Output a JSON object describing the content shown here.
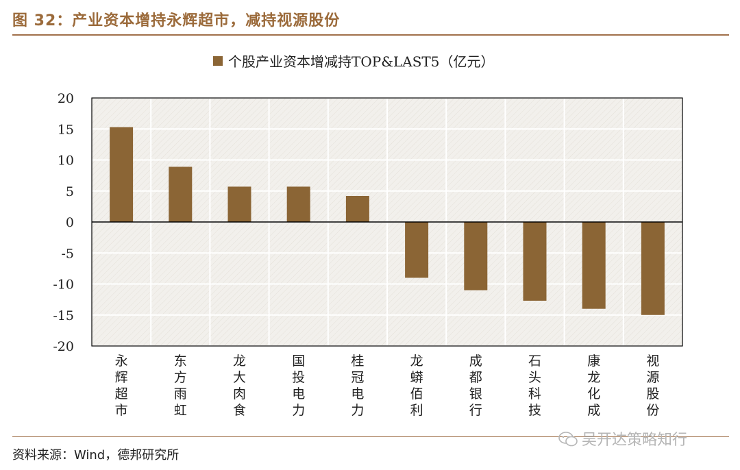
{
  "figure": {
    "title": "图 32：产业资本增持永辉超市，减持视源股份",
    "source": "资料来源：Wind，德邦研究所",
    "watermark": "吴开达策略知行"
  },
  "colors": {
    "bar": "#8b6535",
    "title": "#9b6a3a",
    "rule": "#a0704a",
    "plot_bg": "#f2f0ec",
    "grid": "#ffffff"
  },
  "chart_data": {
    "type": "bar",
    "legend": "个股产业资本增减持TOP&LAST5（亿元）",
    "legend_position": "top-center",
    "categories": [
      "永辉超市",
      "东方雨虹",
      "龙大肉食",
      "国投电力",
      "桂冠电力",
      "龙蟒佰利",
      "成都银行",
      "石头科技",
      "康龙化成",
      "视源股份"
    ],
    "series": [
      {
        "name": "个股产业资本增减持TOP&LAST5（亿元）",
        "values": [
          15.3,
          8.9,
          5.7,
          5.7,
          4.2,
          -9.0,
          -11.0,
          -12.7,
          -14.0,
          -15.0
        ]
      }
    ],
    "ylim": [
      -20,
      20
    ],
    "yticks": [
      "20",
      "15",
      "10",
      "5",
      "0",
      "-5",
      "-10",
      "-15",
      "-20"
    ],
    "grid": true
  }
}
